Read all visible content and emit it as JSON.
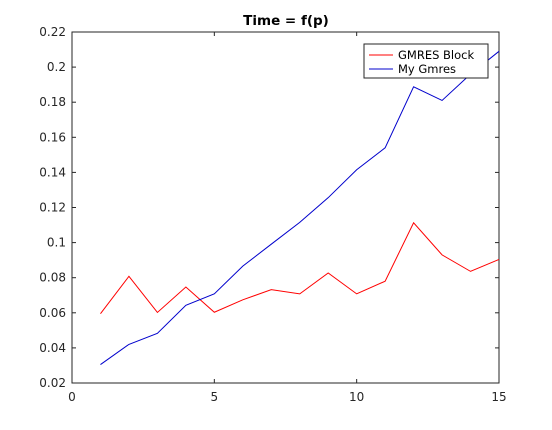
{
  "chart_data": {
    "type": "line",
    "title": "Time = f(p)",
    "xlabel": "",
    "ylabel": "",
    "xlim": [
      0,
      15
    ],
    "ylim": [
      0.02,
      0.22
    ],
    "x_ticks": [
      "0",
      "5",
      "10",
      "15"
    ],
    "x_tick_values": [
      0,
      5,
      10,
      15
    ],
    "y_ticks": [
      "0.02",
      "0.04",
      "0.06",
      "0.08",
      "0.1",
      "0.12",
      "0.14",
      "0.16",
      "0.18",
      "0.2",
      "0.22"
    ],
    "y_tick_values": [
      0.02,
      0.04,
      0.06,
      0.08,
      0.1,
      0.12,
      0.14,
      0.16,
      0.18,
      0.2,
      0.22
    ],
    "grid": false,
    "legend_position": "top-right",
    "x": [
      1,
      2,
      3,
      4,
      5,
      6,
      7,
      8,
      9,
      10,
      11,
      12,
      13,
      14,
      15
    ],
    "series": [
      {
        "name": "GMRES Block",
        "color": "#ff0000",
        "values": [
          0.0595,
          0.0808,
          0.0602,
          0.0747,
          0.0603,
          0.0674,
          0.0732,
          0.0708,
          0.0827,
          0.0708,
          0.078,
          0.1113,
          0.093,
          0.0836,
          0.0904
        ]
      },
      {
        "name": "My Gmres",
        "color": "#0000cc",
        "values": [
          0.0305,
          0.042,
          0.0483,
          0.0643,
          0.0708,
          0.0866,
          0.0991,
          0.1115,
          0.1256,
          0.1415,
          0.154,
          0.1888,
          0.181,
          0.196,
          0.209
        ]
      }
    ]
  }
}
